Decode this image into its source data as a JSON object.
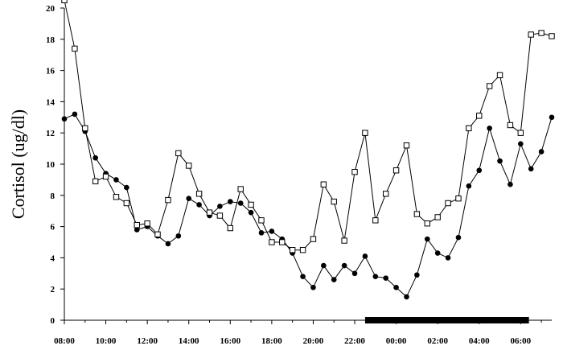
{
  "chart_data": {
    "type": "line",
    "title": "",
    "ylabel": "Cortisol (ug/dl)",
    "xlabel": "",
    "ylim": [
      0,
      20
    ],
    "yticks": [
      "0",
      "2",
      "4",
      "6",
      "8",
      "10",
      "12",
      "14",
      "16",
      "18",
      "20"
    ],
    "xticks": [
      "08:00",
      "10:00",
      "12:00",
      "14:00",
      "16:00",
      "18:00",
      "20:00",
      "22:00",
      "00:00",
      "02:00",
      "04:00",
      "06:00"
    ],
    "x_unit": "hours from 08:00",
    "xlim": [
      0,
      23.5
    ],
    "grid": false,
    "sleep_bar": {
      "start_hours": 14.5,
      "end_hours": 22.4
    },
    "series": [
      {
        "marker": "filled-circle",
        "color": "#000000",
        "x": [
          0,
          0.5,
          1,
          1.5,
          2,
          2.5,
          3,
          3.5,
          4,
          4.5,
          5,
          5.5,
          6,
          6.5,
          7,
          7.5,
          8,
          8.5,
          9,
          9.5,
          10,
          10.5,
          11,
          11.5,
          12,
          12.5,
          13,
          13.5,
          14,
          14.5,
          15,
          15.5,
          16,
          16.5,
          17,
          17.5,
          18,
          18.5,
          19,
          19.5,
          20,
          20.5,
          21,
          21.5,
          22,
          22.5,
          23,
          23.5
        ],
        "values": [
          12.9,
          13.2,
          12.1,
          10.4,
          9.4,
          9.0,
          8.5,
          5.8,
          6.0,
          5.4,
          4.9,
          5.4,
          7.8,
          7.4,
          6.7,
          7.3,
          7.6,
          7.5,
          6.9,
          5.6,
          5.7,
          5.2,
          4.3,
          2.8,
          2.1,
          3.5,
          2.6,
          3.5,
          3.0,
          4.1,
          2.8,
          2.7,
          2.1,
          1.5,
          2.9,
          5.2,
          4.3,
          4.0,
          5.3,
          8.6,
          9.6,
          12.3,
          10.2,
          8.7,
          11.3,
          9.7,
          10.8,
          13.0
        ]
      },
      {
        "marker": "open-square",
        "color": "#000000",
        "x": [
          0,
          0.5,
          1,
          1.5,
          2,
          2.5,
          3,
          3.5,
          4,
          4.5,
          5,
          5.5,
          6,
          6.5,
          7,
          7.5,
          8,
          8.5,
          9,
          9.5,
          10,
          10.5,
          11,
          11.5,
          12,
          12.5,
          13,
          13.5,
          14,
          14.5,
          15,
          15.5,
          16,
          16.5,
          17,
          17.5,
          18,
          18.5,
          19,
          19.5,
          20,
          20.5,
          21,
          21.5,
          22,
          22.5,
          23,
          23.5
        ],
        "values": [
          20.5,
          17.4,
          12.3,
          8.9,
          9.2,
          7.9,
          7.5,
          6.1,
          6.2,
          5.5,
          7.7,
          10.7,
          9.9,
          8.1,
          6.9,
          6.7,
          5.9,
          8.4,
          7.4,
          6.4,
          5.0,
          5.0,
          4.5,
          4.5,
          5.2,
          8.7,
          7.6,
          5.1,
          9.5,
          12.0,
          6.4,
          8.1,
          9.6,
          11.2,
          6.8,
          6.2,
          6.6,
          7.5,
          7.8,
          12.3,
          13.1,
          15.0,
          15.7,
          12.5,
          12.0,
          18.3,
          18.4,
          18.2
        ]
      }
    ]
  }
}
